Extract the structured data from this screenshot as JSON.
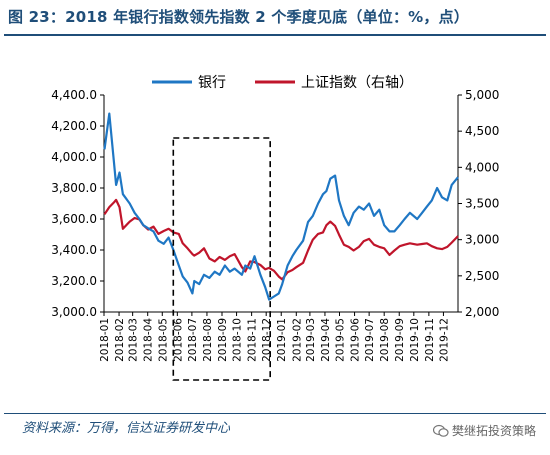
{
  "figure_title": "图 23：2018 年银行指数领先指数 2 个季度见底（单位：%，点）",
  "source_note": "资料来源：万得，信达证券研发中心",
  "watermark": "樊继拓投资策略",
  "colors": {
    "title": "#1f4e79",
    "bank": "#1f77c4",
    "shanghai": "#c0152b",
    "box": "#000000"
  },
  "chart_data": {
    "type": "line",
    "title": "",
    "legend_position": "top",
    "grid": false,
    "y_left": {
      "ylim": [
        3000,
        4400
      ],
      "ticks": [
        "3,000.0",
        "3,200.0",
        "3,400.0",
        "3,600.0",
        "3,800.0",
        "4,000.0",
        "4,200.0",
        "4,400.0"
      ]
    },
    "y_right": {
      "ylim": [
        2000,
        5000
      ],
      "ticks": [
        "2,000",
        "2,500",
        "3,000",
        "3,500",
        "4,000",
        "4,500",
        "5,000"
      ]
    },
    "x_ticks": [
      "2018-01",
      "2018-02",
      "2018-03",
      "2018-04",
      "2018-05",
      "2018-06",
      "2018-07",
      "2018-08",
      "2018-09",
      "2018-10",
      "2018-11",
      "2018-12",
      "2019-01",
      "2019-02",
      "2019-03",
      "2019-04",
      "2019-05",
      "2019-06",
      "2019-07",
      "2019-08",
      "2019-09",
      "2019-10",
      "2019-11",
      "2019-12"
    ],
    "highlight_box": {
      "x_start": "2018-06",
      "x_end": "2018-12",
      "style": "dashed"
    },
    "series": [
      {
        "name": "银行",
        "axis": "left",
        "x": [
          "2018-01-02",
          "2018-01-12",
          "2018-01-22",
          "2018-01-26",
          "2018-02-02",
          "2018-02-09",
          "2018-02-23",
          "2018-03-05",
          "2018-03-15",
          "2018-03-23",
          "2018-04-02",
          "2018-04-13",
          "2018-04-23",
          "2018-05-04",
          "2018-05-14",
          "2018-05-24",
          "2018-06-04",
          "2018-06-12",
          "2018-06-22",
          "2018-07-02",
          "2018-07-06",
          "2018-07-16",
          "2018-07-26",
          "2018-08-06",
          "2018-08-17",
          "2018-08-27",
          "2018-09-07",
          "2018-09-17",
          "2018-09-27",
          "2018-10-12",
          "2018-10-19",
          "2018-10-29",
          "2018-11-07",
          "2018-11-19",
          "2018-11-29",
          "2018-12-07",
          "2018-12-17",
          "2018-12-27",
          "2019-01-03",
          "2019-01-14",
          "2019-01-24",
          "2019-02-01",
          "2019-02-15",
          "2019-02-25",
          "2019-03-07",
          "2019-03-18",
          "2019-03-28",
          "2019-04-04",
          "2019-04-12",
          "2019-04-22",
          "2019-04-30",
          "2019-05-10",
          "2019-05-20",
          "2019-05-30",
          "2019-06-10",
          "2019-06-20",
          "2019-07-01",
          "2019-07-11",
          "2019-07-22",
          "2019-08-01",
          "2019-08-12",
          "2019-08-22",
          "2019-09-02",
          "2019-09-12",
          "2019-09-23",
          "2019-10-08",
          "2019-10-18",
          "2019-10-28",
          "2019-11-07",
          "2019-11-18",
          "2019-11-28",
          "2019-12-09",
          "2019-12-18",
          "2019-12-31"
        ],
        "values": [
          4050,
          4280,
          3950,
          3820,
          3900,
          3760,
          3700,
          3640,
          3600,
          3560,
          3540,
          3520,
          3460,
          3440,
          3480,
          3400,
          3300,
          3230,
          3190,
          3120,
          3200,
          3180,
          3240,
          3220,
          3260,
          3240,
          3300,
          3260,
          3280,
          3240,
          3300,
          3280,
          3360,
          3240,
          3160,
          3080,
          3100,
          3120,
          3180,
          3300,
          3360,
          3400,
          3460,
          3580,
          3620,
          3700,
          3760,
          3780,
          3860,
          3880,
          3720,
          3620,
          3560,
          3640,
          3680,
          3660,
          3700,
          3620,
          3660,
          3560,
          3520,
          3520,
          3560,
          3600,
          3640,
          3600,
          3640,
          3680,
          3720,
          3800,
          3740,
          3720,
          3820,
          3870
        ]
      },
      {
        "name": "上证指数（右轴）",
        "axis": "right",
        "x": [
          "2018-01-02",
          "2018-01-12",
          "2018-01-22",
          "2018-01-26",
          "2018-02-02",
          "2018-02-09",
          "2018-02-23",
          "2018-03-05",
          "2018-03-15",
          "2018-03-23",
          "2018-04-02",
          "2018-04-13",
          "2018-04-23",
          "2018-05-04",
          "2018-05-14",
          "2018-05-24",
          "2018-06-04",
          "2018-06-12",
          "2018-06-22",
          "2018-07-02",
          "2018-07-06",
          "2018-07-16",
          "2018-07-26",
          "2018-08-06",
          "2018-08-17",
          "2018-08-27",
          "2018-09-07",
          "2018-09-17",
          "2018-09-27",
          "2018-10-12",
          "2018-10-19",
          "2018-10-29",
          "2018-11-07",
          "2018-11-19",
          "2018-11-29",
          "2018-12-07",
          "2018-12-17",
          "2018-12-27",
          "2019-01-03",
          "2019-01-14",
          "2019-01-24",
          "2019-02-01",
          "2019-02-15",
          "2019-02-25",
          "2019-03-07",
          "2019-03-18",
          "2019-03-28",
          "2019-04-04",
          "2019-04-12",
          "2019-04-22",
          "2019-04-30",
          "2019-05-10",
          "2019-05-20",
          "2019-05-30",
          "2019-06-10",
          "2019-06-20",
          "2019-07-01",
          "2019-07-11",
          "2019-07-22",
          "2019-08-01",
          "2019-08-12",
          "2019-08-22",
          "2019-09-02",
          "2019-09-12",
          "2019-09-23",
          "2019-10-08",
          "2019-10-18",
          "2019-10-28",
          "2019-11-07",
          "2019-11-18",
          "2019-11-28",
          "2019-12-09",
          "2019-12-18",
          "2019-12-31"
        ],
        "values": [
          3350,
          3450,
          3520,
          3550,
          3450,
          3150,
          3250,
          3300,
          3280,
          3200,
          3140,
          3180,
          3080,
          3120,
          3150,
          3100,
          3080,
          2950,
          2880,
          2800,
          2780,
          2820,
          2880,
          2740,
          2700,
          2760,
          2720,
          2770,
          2800,
          2620,
          2560,
          2700,
          2690,
          2650,
          2590,
          2610,
          2570,
          2490,
          2450,
          2550,
          2580,
          2620,
          2680,
          2850,
          3000,
          3080,
          3100,
          3200,
          3250,
          3190,
          3070,
          2930,
          2900,
          2850,
          2900,
          2980,
          3010,
          2930,
          2900,
          2880,
          2790,
          2850,
          2910,
          2930,
          2950,
          2930,
          2940,
          2950,
          2910,
          2880,
          2870,
          2900,
          2960,
          3050
        ]
      }
    ]
  }
}
